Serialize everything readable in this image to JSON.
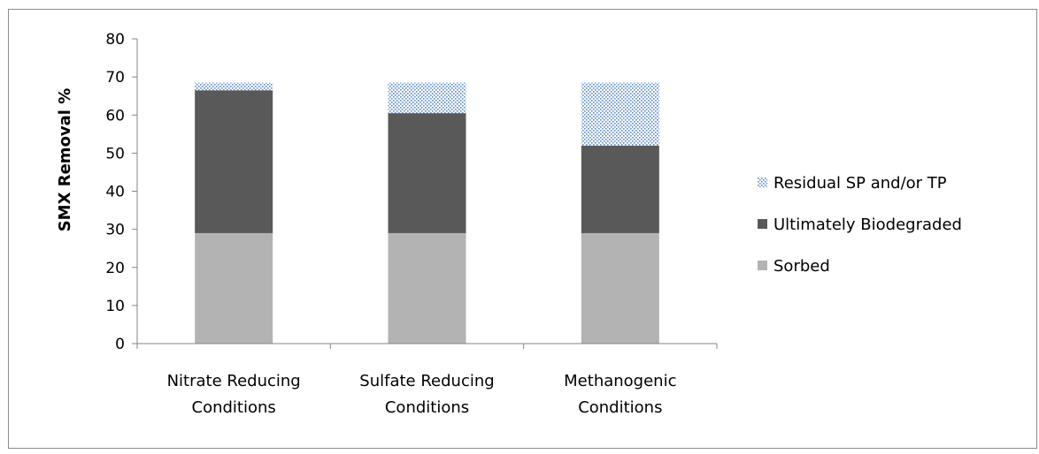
{
  "chart_data": {
    "type": "bar",
    "stacked": true,
    "ylabel": "SMX Removal %",
    "xlabel": "",
    "ylim": [
      0,
      80
    ],
    "yticks": [
      0,
      10,
      20,
      30,
      40,
      50,
      60,
      70,
      80
    ],
    "categories": [
      [
        "Nitrate Reducing",
        "Conditions"
      ],
      [
        "Sulfate Reducing",
        "Conditions"
      ],
      [
        "Methanogenic",
        "Conditions"
      ]
    ],
    "series": [
      {
        "name": "Sorbed",
        "values": [
          29,
          29,
          29
        ],
        "color": "#b3b3b3",
        "pattern": "solid"
      },
      {
        "name": "Ultimately Biodegraded",
        "values": [
          37.5,
          31.5,
          23
        ],
        "color": "#595959",
        "pattern": "solid"
      },
      {
        "name": "Residual SP and/or TP",
        "values": [
          2,
          8,
          16.5
        ],
        "color": "#4f81bd",
        "pattern": "dotted"
      }
    ],
    "legend_position": "right",
    "grid": false
  }
}
